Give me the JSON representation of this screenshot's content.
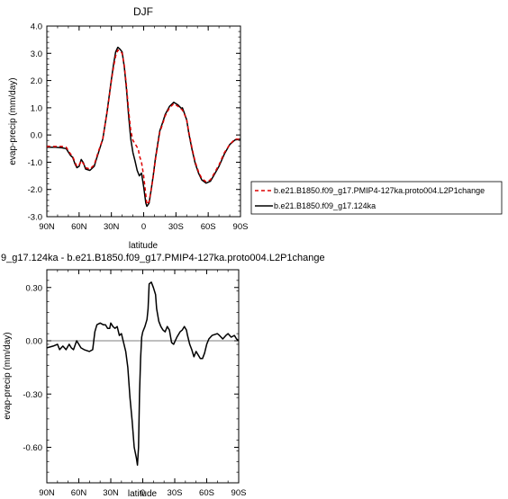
{
  "chart_data": [
    {
      "type": "line",
      "title": "DJF",
      "xlabel": "latitude",
      "ylabel": "evap-precip (mm/day)",
      "x_ticks": [
        "90N",
        "60N",
        "30N",
        "0",
        "30S",
        "60S",
        "90S"
      ],
      "x_tick_values": [
        90,
        60,
        30,
        0,
        -30,
        -60,
        -90
      ],
      "xlim": [
        90,
        -90
      ],
      "ylim": [
        -3.0,
        4.0
      ],
      "y_ticks": [
        "4.0",
        "3.0",
        "2.0",
        "1.0",
        "0.0",
        "-1.0",
        "-2.0",
        "-3.0"
      ],
      "y_tick_values": [
        4,
        3,
        2,
        1,
        0,
        -1,
        -2,
        -3
      ],
      "legend_position": "right",
      "series": [
        {
          "name": "b.e21.B1850.f09_g17.PMIP4-127ka.proto004.L2P1change",
          "color": "#dd0000",
          "dash": "dashed",
          "points": [
            [
              90,
              -0.42
            ],
            [
              82,
              -0.42
            ],
            [
              76,
              -0.42
            ],
            [
              72,
              -0.45
            ],
            [
              68,
              -0.7
            ],
            [
              66,
              -0.78
            ],
            [
              64,
              -1.0
            ],
            [
              62,
              -1.15
            ],
            [
              60,
              -1.1
            ],
            [
              58,
              -0.95
            ],
            [
              56,
              -1.05
            ],
            [
              54,
              -1.2
            ],
            [
              50,
              -1.25
            ],
            [
              46,
              -1.1
            ],
            [
              44,
              -0.85
            ],
            [
              42,
              -0.6
            ],
            [
              38,
              -0.15
            ],
            [
              36,
              0.35
            ],
            [
              34,
              0.85
            ],
            [
              32,
              1.4
            ],
            [
              30,
              2.0
            ],
            [
              28,
              2.5
            ],
            [
              26,
              2.9
            ],
            [
              24,
              3.12
            ],
            [
              22,
              3.08
            ],
            [
              20,
              3.0
            ],
            [
              18,
              2.55
            ],
            [
              16,
              1.8
            ],
            [
              14,
              0.9
            ],
            [
              12,
              0.15
            ],
            [
              10,
              -0.2
            ],
            [
              8,
              -0.32
            ],
            [
              6,
              -0.45
            ],
            [
              5,
              -0.5
            ],
            [
              4,
              -0.75
            ],
            [
              2,
              -1.0
            ],
            [
              0,
              -1.5
            ],
            [
              -2,
              -2.2
            ],
            [
              -3,
              -2.55
            ],
            [
              -5,
              -2.45
            ],
            [
              -7,
              -2.0
            ],
            [
              -9,
              -1.5
            ],
            [
              -11,
              -0.9
            ],
            [
              -13,
              -0.4
            ],
            [
              -15,
              0.1
            ],
            [
              -18,
              0.45
            ],
            [
              -20,
              0.7
            ],
            [
              -24,
              1.0
            ],
            [
              -28,
              1.15
            ],
            [
              -32,
              1.05
            ],
            [
              -35,
              0.95
            ],
            [
              -36,
              0.92
            ],
            [
              -38,
              0.75
            ],
            [
              -40,
              0.55
            ],
            [
              -42,
              0.1
            ],
            [
              -45,
              -0.5
            ],
            [
              -48,
              -1.0
            ],
            [
              -51,
              -1.35
            ],
            [
              -54,
              -1.6
            ],
            [
              -58,
              -1.72
            ],
            [
              -62,
              -1.65
            ],
            [
              -65,
              -1.45
            ],
            [
              -70,
              -1.1
            ],
            [
              -75,
              -0.65
            ],
            [
              -80,
              -0.35
            ],
            [
              -85,
              -0.15
            ],
            [
              -90,
              -0.15
            ]
          ]
        },
        {
          "name": "b.e21.B1850.f09_g17.124ka",
          "color": "#000000",
          "dash": "solid",
          "points": [
            [
              90,
              -0.45
            ],
            [
              82,
              -0.45
            ],
            [
              76,
              -0.47
            ],
            [
              72,
              -0.5
            ],
            [
              68,
              -0.75
            ],
            [
              66,
              -0.82
            ],
            [
              64,
              -1.05
            ],
            [
              62,
              -1.2
            ],
            [
              60,
              -1.15
            ],
            [
              58,
              -0.9
            ],
            [
              56,
              -1.02
            ],
            [
              54,
              -1.25
            ],
            [
              50,
              -1.3
            ],
            [
              46,
              -1.15
            ],
            [
              44,
              -0.9
            ],
            [
              42,
              -0.65
            ],
            [
              38,
              -0.15
            ],
            [
              36,
              0.35
            ],
            [
              34,
              0.85
            ],
            [
              32,
              1.45
            ],
            [
              30,
              2.05
            ],
            [
              28,
              2.6
            ],
            [
              26,
              3.05
            ],
            [
              24,
              3.22
            ],
            [
              22,
              3.15
            ],
            [
              20,
              3.05
            ],
            [
              18,
              2.5
            ],
            [
              16,
              1.7
            ],
            [
              14,
              0.7
            ],
            [
              12,
              -0.15
            ],
            [
              10,
              -0.65
            ],
            [
              8,
              -0.95
            ],
            [
              6,
              -1.3
            ],
            [
              4,
              -1.5
            ],
            [
              2,
              -1.4
            ],
            [
              0,
              -1.9
            ],
            [
              -2,
              -2.5
            ],
            [
              -3,
              -2.62
            ],
            [
              -5,
              -2.5
            ],
            [
              -7,
              -2.0
            ],
            [
              -9,
              -1.45
            ],
            [
              -11,
              -0.85
            ],
            [
              -13,
              -0.35
            ],
            [
              -15,
              0.15
            ],
            [
              -18,
              0.5
            ],
            [
              -20,
              0.75
            ],
            [
              -24,
              1.05
            ],
            [
              -28,
              1.2
            ],
            [
              -32,
              1.1
            ],
            [
              -35,
              0.98
            ],
            [
              -36,
              1.0
            ],
            [
              -38,
              0.78
            ],
            [
              -40,
              0.55
            ],
            [
              -42,
              0.05
            ],
            [
              -45,
              -0.55
            ],
            [
              -48,
              -1.05
            ],
            [
              -51,
              -1.4
            ],
            [
              -54,
              -1.65
            ],
            [
              -58,
              -1.77
            ],
            [
              -62,
              -1.7
            ],
            [
              -65,
              -1.5
            ],
            [
              -70,
              -1.15
            ],
            [
              -75,
              -0.7
            ],
            [
              -80,
              -0.35
            ],
            [
              -85,
              -0.18
            ],
            [
              -90,
              -0.15
            ]
          ]
        }
      ]
    },
    {
      "type": "line",
      "title": "9_g17.124ka - b.e21.B1850.f09_g17.PMIP4-127ka.proto004.L2P1change",
      "xlabel": "latitude",
      "ylabel": "evap-precip (mm/day)",
      "x_ticks": [
        "90N",
        "60N",
        "30N",
        "0",
        "30S",
        "60S",
        "90S"
      ],
      "x_tick_values": [
        90,
        60,
        30,
        0,
        -30,
        -60,
        -90
      ],
      "xlim": [
        90,
        -90
      ],
      "ylim": [
        -0.8,
        0.4
      ],
      "y_ticks": [
        "0.30",
        "0.00",
        "-0.30",
        "-0.60"
      ],
      "y_tick_values": [
        0.3,
        0,
        -0.3,
        -0.6
      ],
      "zero_line": true,
      "series": [
        {
          "color": "#000000",
          "dash": "solid",
          "points": [
            [
              90,
              -0.04
            ],
            [
              84,
              -0.03
            ],
            [
              80,
              -0.02
            ],
            [
              78,
              -0.05
            ],
            [
              75,
              -0.03
            ],
            [
              72,
              -0.05
            ],
            [
              69,
              -0.02
            ],
            [
              67,
              -0.04
            ],
            [
              65,
              -0.05
            ],
            [
              62,
              0.0
            ],
            [
              60,
              -0.02
            ],
            [
              58,
              -0.04
            ],
            [
              55,
              -0.05
            ],
            [
              50,
              -0.06
            ],
            [
              47,
              -0.05
            ],
            [
              45,
              0.05
            ],
            [
              43,
              0.09
            ],
            [
              40,
              0.1
            ],
            [
              37,
              0.09
            ],
            [
              35,
              0.09
            ],
            [
              33,
              0.07
            ],
            [
              31,
              0.07
            ],
            [
              30,
              0.1
            ],
            [
              28,
              0.08
            ],
            [
              26,
              0.07
            ],
            [
              24,
              0.08
            ],
            [
              22,
              0.03
            ],
            [
              20,
              0.04
            ],
            [
              18,
              -0.01
            ],
            [
              16,
              -0.06
            ],
            [
              14,
              -0.15
            ],
            [
              12,
              -0.32
            ],
            [
              10,
              -0.45
            ],
            [
              8,
              -0.6
            ],
            [
              6,
              -0.66
            ],
            [
              5,
              -0.7
            ],
            [
              4,
              -0.6
            ],
            [
              3,
              -0.3
            ],
            [
              2,
              -0.1
            ],
            [
              1,
              0.02
            ],
            [
              0,
              0.05
            ],
            [
              -2,
              0.08
            ],
            [
              -4,
              0.12
            ],
            [
              -5,
              0.18
            ],
            [
              -6,
              0.32
            ],
            [
              -8,
              0.33
            ],
            [
              -10,
              0.3
            ],
            [
              -12,
              0.26
            ],
            [
              -13,
              0.18
            ],
            [
              -15,
              0.11
            ],
            [
              -17,
              0.08
            ],
            [
              -19,
              0.06
            ],
            [
              -21,
              0.05
            ],
            [
              -23,
              0.08
            ],
            [
              -25,
              0.06
            ],
            [
              -27,
              -0.01
            ],
            [
              -29,
              -0.02
            ],
            [
              -32,
              0.02
            ],
            [
              -35,
              0.05
            ],
            [
              -37,
              0.06
            ],
            [
              -39,
              0.08
            ],
            [
              -41,
              0.06
            ],
            [
              -42,
              0.03
            ],
            [
              -44,
              -0.02
            ],
            [
              -46,
              -0.05
            ],
            [
              -48,
              -0.09
            ],
            [
              -50,
              -0.06
            ],
            [
              -52,
              -0.08
            ],
            [
              -54,
              -0.1
            ],
            [
              -56,
              -0.1
            ],
            [
              -58,
              -0.07
            ],
            [
              -60,
              -0.02
            ],
            [
              -62,
              0.01
            ],
            [
              -65,
              0.03
            ],
            [
              -70,
              0.04
            ],
            [
              -72,
              0.03
            ],
            [
              -75,
              0.01
            ],
            [
              -78,
              0.03
            ],
            [
              -80,
              0.04
            ],
            [
              -83,
              0.02
            ],
            [
              -86,
              0.03
            ],
            [
              -88,
              0.01
            ],
            [
              -90,
              0.0
            ]
          ]
        }
      ]
    }
  ]
}
